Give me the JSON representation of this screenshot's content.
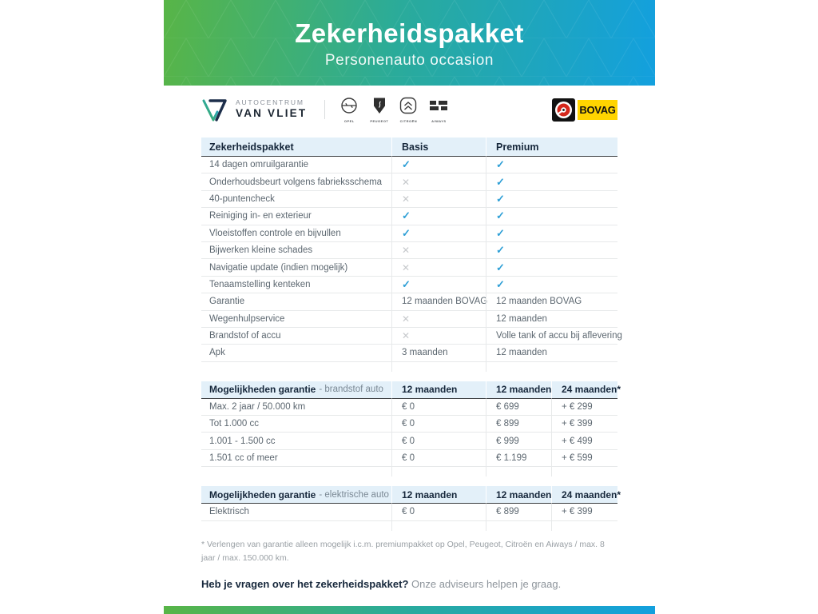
{
  "banner": {
    "title": "Zekerheidspakket",
    "subtitle": "Personenauto occasion",
    "gradient_from": "#58b547",
    "gradient_to": "#13a0de"
  },
  "logos": {
    "dealer": {
      "line1": "AUTOCENTRUM",
      "line2": "VAN VLIET"
    },
    "brands": [
      {
        "label": "OPEL"
      },
      {
        "label": "PEUGEOT"
      },
      {
        "label": "CITROËN"
      },
      {
        "label": "AIWAYS"
      }
    ],
    "bovag": {
      "label": "BOVAG",
      "yellow": "#ffd400",
      "red": "#d5281c"
    }
  },
  "comparison_table": {
    "headers": [
      "Zekerheidspakket",
      "Basis",
      "Premium"
    ],
    "rows": [
      {
        "label": "14 dagen omruilgarantie",
        "basis": "check",
        "premium": "check"
      },
      {
        "label": "Onderhoudsbeurt volgens fabrieksschema",
        "basis": "cross",
        "premium": "check"
      },
      {
        "label": "40-puntencheck",
        "basis": "cross",
        "premium": "check"
      },
      {
        "label": "Reiniging in- en exterieur",
        "basis": "check",
        "premium": "check"
      },
      {
        "label": "Vloeistoffen controle en bijvullen",
        "basis": "check",
        "premium": "check"
      },
      {
        "label": "Bijwerken kleine schades",
        "basis": "cross",
        "premium": "check"
      },
      {
        "label": "Navigatie update (indien mogelijk)",
        "basis": "cross",
        "premium": "check"
      },
      {
        "label": "Tenaamstelling kenteken",
        "basis": "check",
        "premium": "check"
      },
      {
        "label": "Garantie",
        "basis": "12 maanden BOVAG",
        "premium": "12 maanden BOVAG"
      },
      {
        "label": "Wegenhulpservice",
        "basis": "cross",
        "premium": "12 maanden"
      },
      {
        "label": "Brandstof of accu",
        "basis": "cross",
        "premium": "Volle tank of accu bij aflevering"
      },
      {
        "label": "Apk",
        "basis": "3 maanden",
        "premium": "12 maanden"
      }
    ],
    "check_color": "#2e9fd6",
    "cross_color": "#c6c9cc"
  },
  "fuel_table": {
    "title_bold": "Mogelijkheden garantie",
    "title_light": "- brandstof auto",
    "columns": [
      "12 maanden",
      "12 maanden",
      "24 maanden*"
    ],
    "rows": [
      {
        "label": "Max. 2 jaar / 50.000 km",
        "values": [
          "€ 0",
          "€ 699",
          "+ € 299"
        ]
      },
      {
        "label": "Tot 1.000 cc",
        "values": [
          "€ 0",
          "€ 899",
          "+ € 399"
        ]
      },
      {
        "label": "1.001 - 1.500 cc",
        "values": [
          "€ 0",
          "€ 999",
          "+ € 499"
        ]
      },
      {
        "label": "1.501 cc of meer",
        "values": [
          "€ 0",
          "€ 1.199",
          "+ € 599"
        ]
      }
    ]
  },
  "electric_table": {
    "title_bold": "Mogelijkheden garantie",
    "title_light": "- elektrische auto",
    "columns": [
      "12 maanden",
      "12 maanden",
      "24 maanden*"
    ],
    "rows": [
      {
        "label": "Elektrisch",
        "values": [
          "€ 0",
          "€ 899",
          "+ € 399"
        ]
      }
    ]
  },
  "footnote": "* Verlengen van garantie alleen mogelijk i.c.m. premiumpakket op Opel, Peugeot, Citroën en Aiways / max. 8 jaar / max. 150.000 km.",
  "closing": {
    "question": "Heb je vragen over het zekerheidspakket?",
    "answer": "Onze adviseurs helpen je graag."
  }
}
